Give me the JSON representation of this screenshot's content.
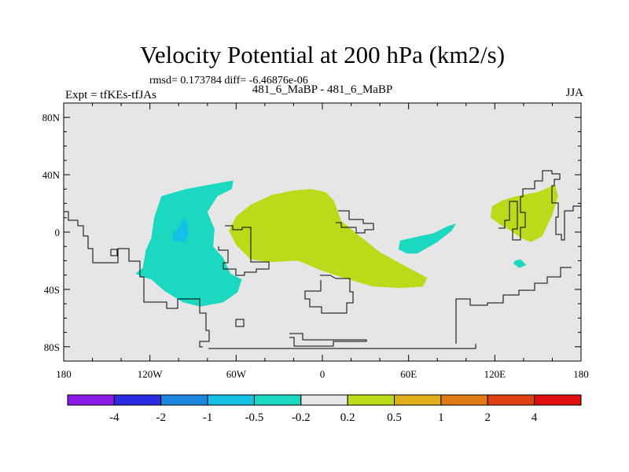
{
  "title": "Velocity Potential at 200 hPa (km2/s)",
  "stats_text": "rmsd= 0.173784 diff= -6.46876e-06",
  "expt_text": "Expt = tfKEs-tfJAs",
  "case_text": "481_6_MaBP - 481_6_MaBP",
  "season": "JJA",
  "colors": {
    "background": "#e6e6e6",
    "coastline": "#000000",
    "colorbar": [
      "#8a1ae6",
      "#2a2ae0",
      "#1a86e0",
      "#14c0e6",
      "#1ad9c0",
      "#e6e6e6",
      "#bcd91a",
      "#e0b01a",
      "#e07a14",
      "#e0400f",
      "#e00f0f"
    ]
  },
  "chart_data": {
    "type": "heatmap",
    "title": "Velocity Potential at 200 hPa (km2/s)",
    "projection": "cylindrical equidistant",
    "xlim": [
      -180,
      180
    ],
    "ylim": [
      -90,
      90
    ],
    "x_ticks": [
      {
        "value": -180,
        "label": "180"
      },
      {
        "value": -120,
        "label": "120W"
      },
      {
        "value": -60,
        "label": "60W"
      },
      {
        "value": 0,
        "label": "0"
      },
      {
        "value": 60,
        "label": "60E"
      },
      {
        "value": 120,
        "label": "120E"
      },
      {
        "value": 180,
        "label": "180"
      }
    ],
    "y_ticks": [
      {
        "value": 80,
        "label": "80N"
      },
      {
        "value": 40,
        "label": "40N"
      },
      {
        "value": 0,
        "label": "0"
      },
      {
        "value": -40,
        "label": "40S"
      },
      {
        "value": -80,
        "label": "80S"
      }
    ],
    "contour_levels": [
      -4,
      -2,
      -1,
      -0.5,
      -0.2,
      0.2,
      0.5,
      1,
      2,
      4
    ],
    "colorbar_labels": [
      "-4",
      "-2",
      "-1",
      "-0.5",
      "-0.2",
      "0.2",
      "0.5",
      "1",
      "2",
      "4"
    ],
    "shaded_regions": [
      {
        "name": "-0.5 to -0.2 (western hemisphere)",
        "level_range": [
          -0.5,
          -0.2
        ],
        "lonlat": [
          [
            -112,
            25
          ],
          [
            -95,
            30
          ],
          [
            -73,
            34
          ],
          [
            -62,
            36
          ],
          [
            -63,
            30
          ],
          [
            -73,
            25
          ],
          [
            -80,
            14
          ],
          [
            -75,
            2
          ],
          [
            -76,
            -10
          ],
          [
            -69,
            -18
          ],
          [
            -64,
            -29
          ],
          [
            -56,
            -33
          ],
          [
            -59,
            -42
          ],
          [
            -69,
            -49
          ],
          [
            -85,
            -52
          ],
          [
            -97,
            -49
          ],
          [
            -110,
            -41
          ],
          [
            -119,
            -33
          ],
          [
            -126,
            -31
          ],
          [
            -130,
            -29
          ],
          [
            -125,
            -25
          ],
          [
            -123,
            -13
          ],
          [
            -119,
            -4
          ],
          [
            -117,
            10
          ]
        ]
      },
      {
        "name": "-1 to -0.5 (eastern Pacific core)",
        "level_range": [
          -1,
          -0.5
        ],
        "lonlat": [
          [
            -97,
            10
          ],
          [
            -94,
            6
          ],
          [
            -93,
            -2
          ],
          [
            -96,
            -7
          ],
          [
            -104,
            -6
          ],
          [
            -104,
            -1
          ],
          [
            -100,
            3
          ]
        ]
      },
      {
        "name": "-0.5 to -0.2 (Indian Ocean)",
        "level_range": [
          -0.5,
          -0.2
        ],
        "lonlat": [
          [
            54,
            -6
          ],
          [
            67,
            -3
          ],
          [
            77,
            -1
          ],
          [
            87,
            4
          ],
          [
            93,
            6
          ],
          [
            90,
            1
          ],
          [
            80,
            -7
          ],
          [
            66,
            -15
          ],
          [
            59,
            -15
          ],
          [
            53,
            -12
          ]
        ]
      },
      {
        "name": "-0.5 to -0.2 (small patch east of Australia)",
        "level_range": [
          -0.5,
          -0.2
        ],
        "lonlat": [
          [
            134,
            -20
          ],
          [
            138,
            -19
          ],
          [
            142,
            -23
          ],
          [
            137,
            -25
          ],
          [
            133,
            -22
          ]
        ]
      },
      {
        "name": "0.2 to 0.5 (Atlantic-Africa)",
        "level_range": [
          0.2,
          0.5
        ],
        "lonlat": [
          [
            -65,
            1
          ],
          [
            -60,
            -9
          ],
          [
            -50,
            -19
          ],
          [
            -37,
            -21
          ],
          [
            -17,
            -20
          ],
          [
            0,
            -27
          ],
          [
            15,
            -32
          ],
          [
            35,
            -38
          ],
          [
            55,
            -39
          ],
          [
            70,
            -38
          ],
          [
            73,
            -32
          ],
          [
            60,
            -25
          ],
          [
            40,
            -14
          ],
          [
            25,
            -2
          ],
          [
            13,
            8
          ],
          [
            8,
            22
          ],
          [
            2,
            28
          ],
          [
            -8,
            30
          ],
          [
            -20,
            29
          ],
          [
            -35,
            26
          ],
          [
            -50,
            19
          ],
          [
            -60,
            11
          ]
        ]
      },
      {
        "name": "0.2 to 0.5 (western Pacific)",
        "level_range": [
          0.2,
          0.5
        ],
        "lonlat": [
          [
            118,
            18
          ],
          [
            125,
            22
          ],
          [
            135,
            25
          ],
          [
            150,
            28
          ],
          [
            162,
            33
          ],
          [
            164,
            25
          ],
          [
            160,
            12
          ],
          [
            153,
            -3
          ],
          [
            145,
            -7
          ],
          [
            138,
            -4
          ],
          [
            131,
            1
          ],
          [
            124,
            5
          ],
          [
            117,
            10
          ]
        ]
      }
    ]
  }
}
